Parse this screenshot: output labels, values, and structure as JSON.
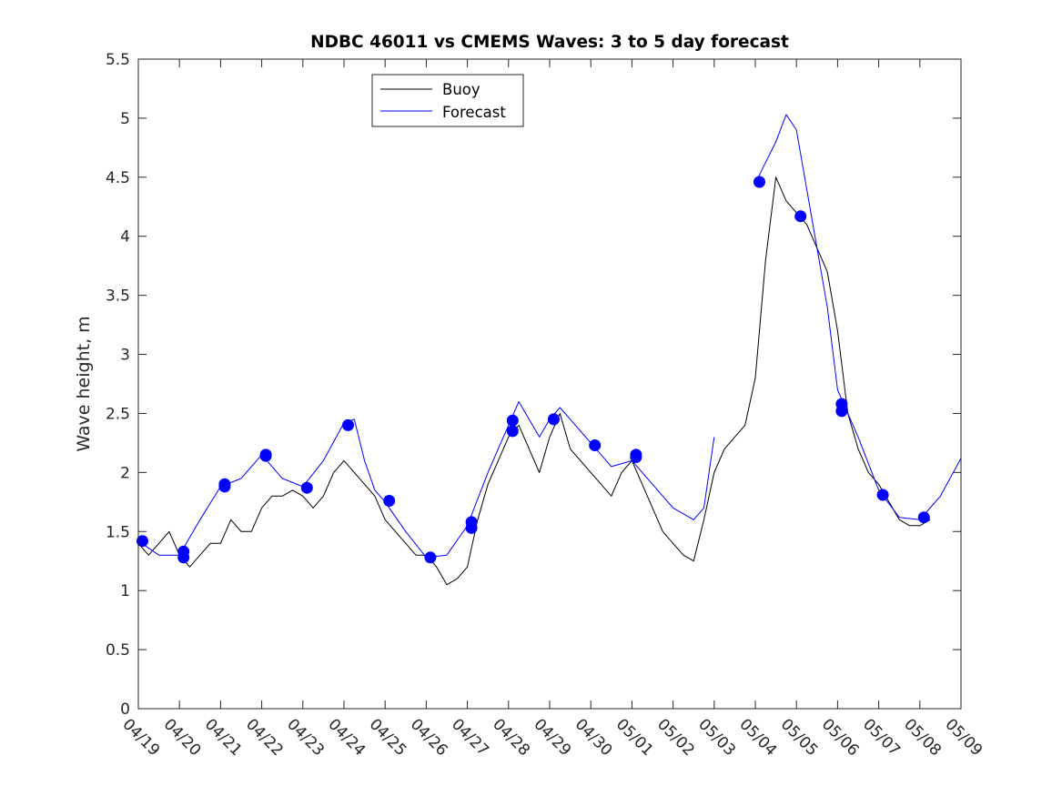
{
  "chart_data": {
    "type": "line",
    "title": "NDBC 46011 vs CMEMS Waves: 3 to 5 day forecast",
    "xlabel": "",
    "ylabel": "Wave height, m",
    "xlim": [
      0,
      20
    ],
    "ylim": [
      0,
      5.5
    ],
    "x_unit": "days since 04/19",
    "x_ticks": [
      0,
      1,
      2,
      3,
      4,
      5,
      6,
      7,
      8,
      9,
      10,
      11,
      12,
      13,
      14,
      15,
      16,
      17,
      18,
      19,
      20
    ],
    "x_tick_labels": [
      "04/19",
      "04/20",
      "04/21",
      "04/22",
      "04/23",
      "04/24",
      "04/25",
      "04/26",
      "04/27",
      "04/28",
      "04/29",
      "04/30",
      "05/01",
      "05/02",
      "05/03",
      "05/04",
      "05/05",
      "05/06",
      "05/07",
      "05/08",
      "05/09"
    ],
    "y_ticks": [
      0,
      0.5,
      1,
      1.5,
      2,
      2.5,
      3,
      3.5,
      4,
      4.5,
      5,
      5.5
    ],
    "y_tick_labels": [
      "0",
      "0.5",
      "1",
      "1.5",
      "2",
      "2.5",
      "3",
      "3.5",
      "4",
      "4.5",
      "5",
      "5.5"
    ],
    "grid": false,
    "legend": {
      "placement": "top-center",
      "entries": [
        "Buoy",
        "Forecast"
      ]
    },
    "colors": {
      "buoy": "#000000",
      "forecast": "#0000ff"
    },
    "series": [
      {
        "name": "Buoy",
        "color": "#000000",
        "points": [
          [
            0.0,
            1.4
          ],
          [
            0.25,
            1.3
          ],
          [
            0.5,
            1.4
          ],
          [
            0.75,
            1.5
          ],
          [
            1.0,
            1.3
          ],
          [
            1.25,
            1.2
          ],
          [
            1.5,
            1.3
          ],
          [
            1.75,
            1.4
          ],
          [
            2.0,
            1.4
          ],
          [
            2.25,
            1.6
          ],
          [
            2.5,
            1.5
          ],
          [
            2.75,
            1.5
          ],
          [
            3.0,
            1.7
          ],
          [
            3.25,
            1.8
          ],
          [
            3.5,
            1.8
          ],
          [
            3.75,
            1.85
          ],
          [
            4.0,
            1.8
          ],
          [
            4.25,
            1.7
          ],
          [
            4.5,
            1.8
          ],
          [
            4.75,
            2.0
          ],
          [
            5.0,
            2.1
          ],
          [
            5.25,
            2.0
          ],
          [
            5.5,
            1.9
          ],
          [
            5.75,
            1.8
          ],
          [
            6.0,
            1.6
          ],
          [
            6.25,
            1.5
          ],
          [
            6.5,
            1.4
          ],
          [
            6.75,
            1.3
          ],
          [
            7.0,
            1.3
          ],
          [
            7.25,
            1.2
          ],
          [
            7.5,
            1.05
          ],
          [
            7.75,
            1.1
          ],
          [
            8.0,
            1.2
          ],
          [
            8.25,
            1.6
          ],
          [
            8.5,
            1.9
          ],
          [
            8.75,
            2.1
          ],
          [
            9.0,
            2.3
          ],
          [
            9.25,
            2.4
          ],
          [
            9.5,
            2.2
          ],
          [
            9.75,
            2.0
          ],
          [
            10.0,
            2.3
          ],
          [
            10.25,
            2.5
          ],
          [
            10.5,
            2.2
          ],
          [
            10.75,
            2.1
          ],
          [
            11.0,
            2.0
          ],
          [
            11.25,
            1.9
          ],
          [
            11.5,
            1.8
          ],
          [
            11.75,
            2.0
          ],
          [
            12.0,
            2.1
          ],
          [
            12.25,
            1.9
          ],
          [
            12.5,
            1.7
          ],
          [
            12.75,
            1.5
          ],
          [
            13.0,
            1.4
          ],
          [
            13.25,
            1.3
          ],
          [
            13.5,
            1.25
          ],
          [
            13.75,
            1.6
          ],
          [
            14.0,
            2.0
          ],
          [
            14.25,
            2.2
          ],
          [
            14.5,
            2.3
          ],
          [
            14.75,
            2.4
          ],
          [
            15.0,
            2.8
          ],
          [
            15.25,
            3.8
          ],
          [
            15.5,
            4.5
          ],
          [
            15.75,
            4.3
          ],
          [
            16.0,
            4.2
          ],
          [
            16.25,
            4.1
          ],
          [
            16.5,
            3.9
          ],
          [
            16.75,
            3.7
          ],
          [
            17.0,
            3.2
          ],
          [
            17.25,
            2.5
          ],
          [
            17.5,
            2.2
          ],
          [
            17.75,
            2.0
          ],
          [
            18.0,
            1.9
          ],
          [
            18.25,
            1.75
          ],
          [
            18.5,
            1.6
          ],
          [
            18.75,
            1.55
          ],
          [
            19.0,
            1.55
          ],
          [
            19.25,
            1.6
          ]
        ]
      },
      {
        "name": "Forecast",
        "color": "#0000ff",
        "points": [
          [
            0.0,
            1.42
          ],
          [
            0.5,
            1.3
          ],
          [
            1.0,
            1.3
          ],
          [
            1.5,
            1.6
          ],
          [
            2.0,
            1.88
          ],
          [
            2.5,
            1.95
          ],
          [
            3.0,
            2.15
          ],
          [
            3.5,
            1.95
          ],
          [
            4.0,
            1.88
          ],
          [
            4.5,
            2.1
          ],
          [
            5.0,
            2.42
          ],
          [
            5.25,
            2.45
          ],
          [
            5.5,
            2.1
          ],
          [
            5.75,
            1.85
          ],
          [
            6.0,
            1.75
          ],
          [
            6.5,
            1.5
          ],
          [
            7.0,
            1.28
          ],
          [
            7.5,
            1.3
          ],
          [
            8.0,
            1.55
          ],
          [
            8.5,
            2.0
          ],
          [
            9.0,
            2.4
          ],
          [
            9.25,
            2.6
          ],
          [
            9.5,
            2.45
          ],
          [
            9.75,
            2.3
          ],
          [
            10.0,
            2.45
          ],
          [
            10.25,
            2.55
          ],
          [
            10.5,
            2.45
          ],
          [
            11.0,
            2.25
          ],
          [
            11.5,
            2.05
          ],
          [
            12.0,
            2.1
          ],
          [
            12.5,
            1.9
          ],
          [
            13.0,
            1.7
          ],
          [
            13.5,
            1.6
          ],
          [
            13.75,
            1.7
          ],
          [
            14.0,
            2.3
          ]
        ]
      },
      {
        "name": "",
        "color": "#0000ff",
        "points": [
          [
            15.0,
            4.45
          ],
          [
            15.5,
            4.8
          ],
          [
            15.75,
            5.03
          ],
          [
            16.0,
            4.9
          ],
          [
            16.25,
            4.4
          ],
          [
            16.5,
            3.9
          ],
          [
            16.75,
            3.4
          ],
          [
            17.0,
            2.7
          ],
          [
            17.5,
            2.3
          ],
          [
            18.0,
            1.85
          ],
          [
            18.5,
            1.62
          ],
          [
            19.0,
            1.6
          ],
          [
            19.5,
            1.8
          ],
          [
            20.0,
            2.12
          ]
        ]
      }
    ],
    "markers": {
      "color": "#0000ff",
      "points": [
        [
          0.1,
          1.42
        ],
        [
          1.1,
          1.33
        ],
        [
          1.1,
          1.28
        ],
        [
          2.1,
          1.9
        ],
        [
          2.1,
          1.88
        ],
        [
          3.1,
          2.15
        ],
        [
          3.1,
          2.14
        ],
        [
          4.1,
          1.87
        ],
        [
          5.1,
          2.4
        ],
        [
          6.1,
          1.76
        ],
        [
          7.1,
          1.28
        ],
        [
          8.1,
          1.58
        ],
        [
          8.1,
          1.53
        ],
        [
          9.1,
          2.44
        ],
        [
          9.1,
          2.35
        ],
        [
          10.1,
          2.45
        ],
        [
          11.1,
          2.23
        ],
        [
          12.1,
          2.15
        ],
        [
          12.1,
          2.13
        ],
        [
          15.1,
          4.46
        ],
        [
          16.1,
          4.17
        ],
        [
          17.1,
          2.58
        ],
        [
          17.1,
          2.52
        ],
        [
          18.1,
          1.81
        ],
        [
          19.1,
          1.62
        ]
      ]
    }
  }
}
